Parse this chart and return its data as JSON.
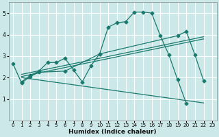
{
  "xlabel": "Humidex (Indice chaleur)",
  "bg_color": "#cce8e8",
  "grid_color": "#ffffff",
  "line_color": "#1a7a6e",
  "xlim": [
    -0.5,
    23.5
  ],
  "ylim": [
    0,
    5.5
  ],
  "xticks": [
    0,
    1,
    2,
    3,
    4,
    5,
    6,
    7,
    8,
    9,
    10,
    11,
    12,
    13,
    14,
    15,
    16,
    17,
    18,
    19,
    20,
    21,
    22,
    23
  ],
  "yticks": [
    1,
    2,
    3,
    4,
    5
  ],
  "lines": [
    {
      "x": [
        1,
        2,
        3,
        4,
        5,
        6,
        7,
        8,
        9,
        10,
        11,
        12,
        13,
        14,
        15,
        16,
        17,
        18,
        19,
        20
      ],
      "y": [
        1.8,
        2.1,
        2.3,
        2.7,
        2.7,
        2.9,
        2.35,
        1.8,
        2.55,
        3.1,
        4.35,
        4.55,
        4.6,
        5.05,
        5.05,
        5.0,
        3.95,
        3.05,
        1.9,
        0.8
      ],
      "marker": "D",
      "markersize": 2.5,
      "lw": 0.9
    },
    {
      "x": [
        0,
        1,
        2,
        3,
        6,
        10,
        19,
        20,
        21,
        22
      ],
      "y": [
        2.65,
        1.75,
        2.05,
        2.25,
        2.3,
        3.1,
        3.95,
        4.15,
        3.05,
        1.85
      ],
      "marker": "D",
      "markersize": 2.5,
      "lw": 0.9
    },
    {
      "x": [
        1,
        22
      ],
      "y": [
        2.15,
        3.9
      ],
      "marker": null,
      "markersize": 0,
      "lw": 0.9
    },
    {
      "x": [
        1,
        22
      ],
      "y": [
        2.05,
        3.8
      ],
      "marker": null,
      "markersize": 0,
      "lw": 0.9
    },
    {
      "x": [
        1,
        22
      ],
      "y": [
        2.0,
        0.82
      ],
      "marker": null,
      "markersize": 0,
      "lw": 0.9
    }
  ]
}
